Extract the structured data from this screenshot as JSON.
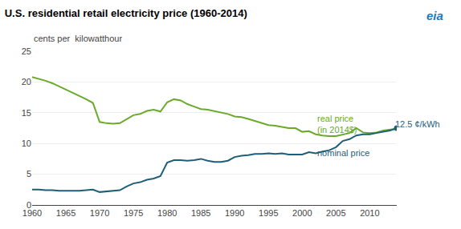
{
  "chart_data": {
    "type": "line",
    "title": "U.S. residential retail electricity price (1960-2014)",
    "ylabel": "cents per  kilowatthour",
    "x": [
      1960,
      1961,
      1962,
      1963,
      1964,
      1965,
      1966,
      1967,
      1968,
      1969,
      1970,
      1971,
      1972,
      1973,
      1974,
      1975,
      1976,
      1977,
      1978,
      1979,
      1980,
      1981,
      1982,
      1983,
      1984,
      1985,
      1986,
      1987,
      1988,
      1989,
      1990,
      1991,
      1992,
      1993,
      1994,
      1995,
      1996,
      1997,
      1998,
      1999,
      2000,
      2001,
      2002,
      2003,
      2004,
      2005,
      2006,
      2007,
      2008,
      2009,
      2010,
      2011,
      2012,
      2013,
      2014
    ],
    "series": [
      {
        "color": "#6aaa2a",
        "values": [
          20.8,
          20.5,
          20.2,
          19.8,
          19.3,
          18.8,
          18.3,
          17.8,
          17.2,
          16.6,
          13.5,
          13.3,
          13.2,
          13.3,
          14.0,
          14.6,
          14.8,
          15.3,
          15.5,
          15.2,
          16.7,
          17.2,
          17.0,
          16.4,
          16.0,
          15.6,
          15.5,
          15.3,
          15.0,
          14.8,
          14.4,
          14.3,
          14.0,
          13.7,
          13.3,
          13.0,
          12.9,
          12.7,
          12.5,
          12.5,
          11.9,
          12.0,
          11.5,
          11.3,
          11.2,
          11.2,
          11.5,
          11.7,
          12.5,
          11.8,
          11.7,
          11.8,
          12.1,
          12.3,
          12.4
        ]
      },
      {
        "color": "#1f5e78",
        "marker": "circle",
        "values": [
          2.5,
          2.5,
          2.4,
          2.4,
          2.3,
          2.3,
          2.3,
          2.3,
          2.4,
          2.5,
          2.1,
          2.2,
          2.3,
          2.4,
          3.0,
          3.5,
          3.7,
          4.1,
          4.3,
          4.7,
          6.9,
          7.3,
          7.3,
          7.2,
          7.3,
          7.5,
          7.2,
          7.0,
          7.0,
          7.2,
          7.8,
          8.0,
          8.1,
          8.3,
          8.3,
          8.4,
          8.3,
          8.4,
          8.2,
          8.2,
          8.2,
          8.6,
          8.4,
          8.7,
          8.9,
          9.4,
          10.4,
          10.7,
          11.3,
          11.5,
          11.5,
          11.7,
          11.9,
          12.1,
          12.5
        ]
      }
    ],
    "annotations": [
      {
        "text": "real price\n(in 2014$)",
        "x": 2002,
        "y": 13.2,
        "color": "#6aaa2a"
      },
      {
        "text": "nominal price",
        "x": 2002,
        "y": 8.5,
        "color": "#1f5e78"
      },
      {
        "text": "12.5 ¢/kWh",
        "x": 2013.5,
        "y": 13.2,
        "color": "#1f5e78"
      },
      {
        "text": "eia",
        "color": "#1a7abf"
      }
    ],
    "xlim": [
      1960,
      2014
    ],
    "xticks": [
      1960,
      1965,
      1970,
      1975,
      1980,
      1985,
      1990,
      1995,
      2000,
      2005,
      2010
    ],
    "ylim": [
      0,
      25
    ],
    "yticks": [
      0,
      5,
      10,
      15,
      20,
      25
    ],
    "grid": true
  }
}
